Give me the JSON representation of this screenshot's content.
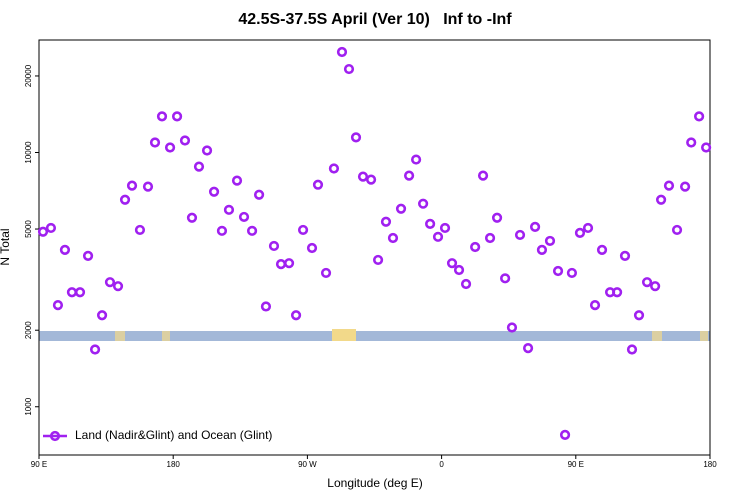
{
  "chart_data": {
    "type": "scatter",
    "title": "42.5S-37.5S April (Ver 10)   Inf to -Inf",
    "xlabel": "Longitude (deg E)",
    "ylabel": "N Total",
    "log_y": true,
    "legend": "lower left",
    "xlim": [
      90,
      540
    ],
    "xticks": [
      {
        "value": 90,
        "label": "90 E"
      },
      180,
      {
        "value": 270,
        "label": "90 W"
      },
      {
        "value": 360,
        "label": "0"
      },
      {
        "value": 450,
        "label": "90 E"
      },
      {
        "value": 540,
        "label": "180"
      }
    ],
    "ylim": [
      646,
      27700
    ],
    "yticks": [
      1000,
      2000,
      5000,
      10000,
      20000
    ],
    "series": [
      {
        "name": "Land (Nadir&Glint) and Ocean (Glint)",
        "color": "#a020f0",
        "x": [
          92.7,
          98.0,
          102.7,
          107.4,
          112.1,
          117.5,
          122.9,
          127.6,
          132.3,
          137.6,
          143.0,
          147.7,
          152.4,
          157.7,
          163.1,
          167.8,
          172.5,
          177.9,
          182.6,
          187.9,
          192.6,
          197.3,
          202.7,
          207.4,
          212.7,
          217.4,
          222.8,
          227.5,
          232.9,
          237.6,
          242.2,
          247.6,
          252.3,
          257.7,
          262.4,
          267.1,
          273.1,
          277.1,
          282.5,
          287.8,
          293.2,
          297.9,
          302.6,
          307.3,
          312.7,
          317.4,
          322.7,
          327.4,
          332.8,
          338.2,
          342.9,
          347.6,
          352.3,
          357.6,
          362.3,
          367.0,
          371.7,
          376.4,
          382.5,
          387.8,
          392.5,
          397.2,
          402.6,
          407.2,
          412.6,
          418.0,
          422.7,
          427.3,
          432.7,
          438.1,
          442.8,
          447.4,
          452.8,
          458.2,
          462.9,
          467.6,
          473.0,
          477.7,
          483.0,
          487.7,
          492.4,
          497.8,
          503.2,
          507.2,
          512.5,
          517.9,
          523.3,
          527.4,
          532.7,
          537.4
        ],
        "values": [
          4880,
          5050,
          2510,
          4140,
          2820,
          2820,
          3920,
          1680,
          2290,
          3090,
          2980,
          6520,
          7410,
          4960,
          7340,
          10950,
          13870,
          10460,
          13870,
          11150,
          5540,
          8800,
          10180,
          7010,
          4920,
          5950,
          7750,
          5580,
          4920,
          6820,
          2480,
          4290,
          3640,
          3670,
          2290,
          4960,
          4210,
          7470,
          3360,
          8650,
          24850,
          21290,
          11470,
          8040,
          7820,
          3780,
          5340,
          4610,
          6010,
          8110,
          9380,
          6290,
          5240,
          4660,
          5050,
          3670,
          3450,
          3040,
          4250,
          8110,
          4610,
          5540,
          3200,
          2050,
          4740,
          1700,
          5100,
          4140,
          4490,
          3420,
          775,
          3360,
          4830,
          5050,
          2510,
          4140,
          2820,
          2820,
          3920,
          1680,
          2290,
          3090,
          2980,
          6520,
          7410,
          4960,
          7340,
          10950,
          13870,
          10460
        ]
      }
    ]
  }
}
